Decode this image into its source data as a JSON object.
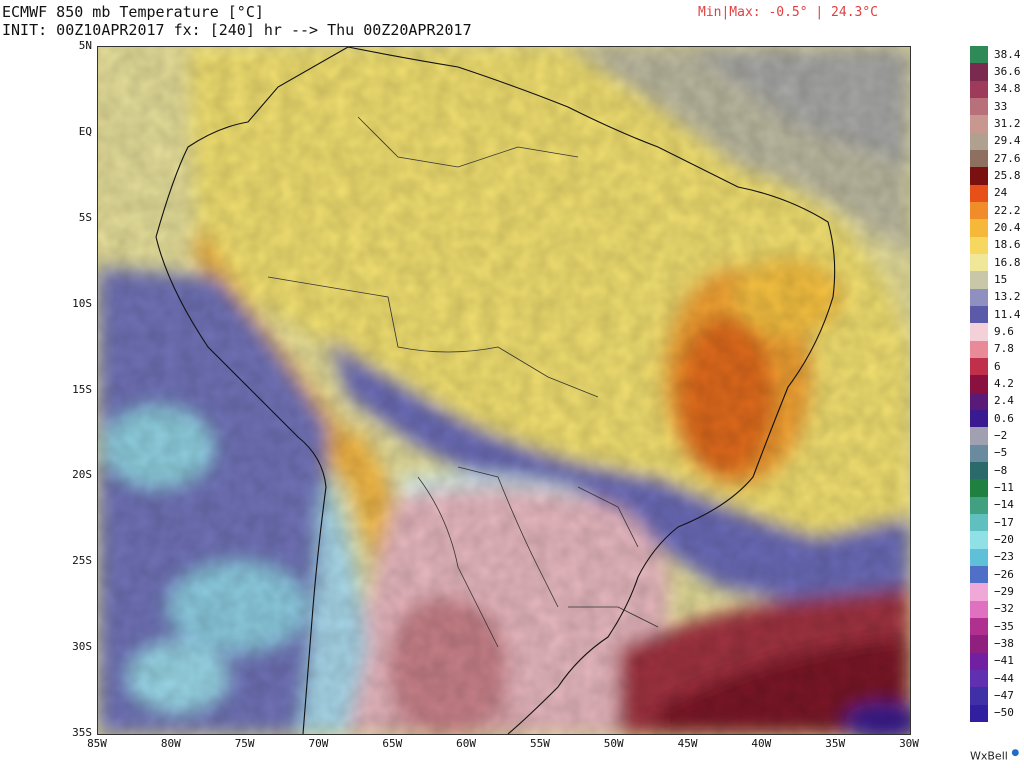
{
  "header": {
    "title": "ECMWF 850 mb Temperature [°C]",
    "init": "INIT: 00Z10APR2017 fx: [240] hr --> Thu 00Z20APR2017",
    "minmax": "Min|Max: -0.5° | 24.3°C"
  },
  "map": {
    "lon_range": [
      -85,
      -30
    ],
    "lat_range": [
      -35,
      5
    ],
    "y_axis_labels": [
      {
        "lat": 5,
        "label": "5N"
      },
      {
        "lat": 0,
        "label": "EQ"
      },
      {
        "lat": -5,
        "label": "5S"
      },
      {
        "lat": -10,
        "label": "10S"
      },
      {
        "lat": -15,
        "label": "15S"
      },
      {
        "lat": -20,
        "label": "20S"
      },
      {
        "lat": -25,
        "label": "25S"
      },
      {
        "lat": -30,
        "label": "30S"
      },
      {
        "lat": -35,
        "label": "35S"
      }
    ],
    "x_axis_labels": [
      {
        "lon": -85,
        "label": "85W"
      },
      {
        "lon": -80,
        "label": "80W"
      },
      {
        "lon": -75,
        "label": "75W"
      },
      {
        "lon": -70,
        "label": "70W"
      },
      {
        "lon": -65,
        "label": "65W"
      },
      {
        "lon": -60,
        "label": "60W"
      },
      {
        "lon": -55,
        "label": "55W"
      },
      {
        "lon": -50,
        "label": "50W"
      },
      {
        "lon": -45,
        "label": "45W"
      },
      {
        "lon": -40,
        "label": "40W"
      },
      {
        "lon": -35,
        "label": "35W"
      },
      {
        "lon": -30,
        "label": "30W"
      }
    ]
  },
  "colorbar": {
    "labels": [
      "38.4",
      "36.6",
      "34.8",
      "33",
      "31.2",
      "29.4",
      "27.6",
      "25.8",
      "24",
      "22.2",
      "20.4",
      "18.6",
      "16.8",
      "15",
      "13.2",
      "11.4",
      "9.6",
      "7.8",
      "6",
      "4.2",
      "2.4",
      "0.6",
      "−2",
      "−5",
      "−8",
      "−11",
      "−14",
      "−17",
      "−20",
      "−23",
      "−26",
      "−29",
      "−32",
      "−35",
      "−38",
      "−41",
      "−44",
      "−47",
      "−50"
    ],
    "colors": [
      "#2e8b57",
      "#7a2a4e",
      "#9e3a5a",
      "#b8707a",
      "#c89890",
      "#b0a090",
      "#8e7060",
      "#7a1010",
      "#e8501a",
      "#f08c2a",
      "#f6b838",
      "#f6d860",
      "#f0e898",
      "#c8c8a8",
      "#9090c0",
      "#5a5aa8",
      "#f4d0d8",
      "#e88a98",
      "#c0304a",
      "#8a1040",
      "#5a1a78",
      "#3a1a90",
      "#a0a0b0",
      "#6a8aa0",
      "#2a6a6a",
      "#208040",
      "#40a080",
      "#60c0c0",
      "#90e0e8",
      "#60c0d8",
      "#5070c8",
      "#f0a8d8",
      "#e070c0",
      "#b03090",
      "#902080",
      "#7020a0",
      "#6030b0",
      "#4030a8",
      "#3020a0"
    ]
  },
  "brand": "WxBell"
}
